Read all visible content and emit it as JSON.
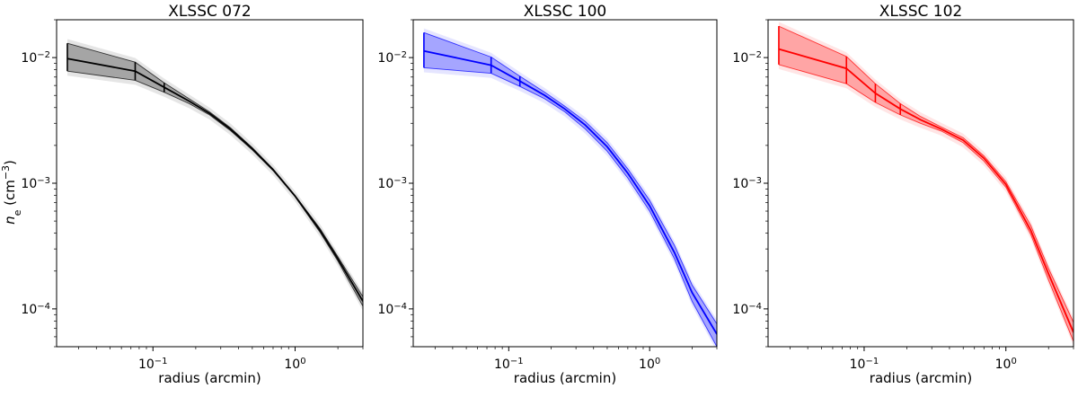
{
  "figure": {
    "ylabel_main": "n",
    "ylabel_sub": "e",
    "ylabel_unit_pre": " (cm",
    "ylabel_unit_exp": "−3",
    "ylabel_unit_post": ")"
  },
  "chart_data": [
    {
      "type": "line",
      "title": "XLSSC 072",
      "xlabel": "radius (arcmin)",
      "ylabel": "n_e (cm^-3)",
      "xscale": "log",
      "yscale": "log",
      "xlim": [
        0.021,
        3.0
      ],
      "ylim": [
        5e-05,
        0.02
      ],
      "color": "#000000",
      "x_ticks": [
        {
          "base": "10",
          "exp": "−1",
          "value": 0.1
        },
        {
          "base": "10",
          "exp": "0",
          "value": 1
        }
      ],
      "y_ticks": [
        {
          "base": "10",
          "exp": "−2",
          "value": 0.01
        },
        {
          "base": "10",
          "exp": "−3",
          "value": 0.001
        },
        {
          "base": "10",
          "exp": "−4",
          "value": 0.0001
        }
      ],
      "curve": {
        "x": [
          0.025,
          0.075,
          0.12,
          0.18,
          0.25,
          0.35,
          0.5,
          0.7,
          1.0,
          1.5,
          2.0,
          3.0
        ],
        "y": [
          0.0098,
          0.0078,
          0.0058,
          0.0045,
          0.0036,
          0.0027,
          0.00188,
          0.00128,
          0.00079,
          0.00042,
          0.00025,
          0.000115
        ]
      },
      "upper": [
        0.013,
        0.0092,
        0.0063,
        0.0047,
        0.0037,
        0.00277,
        0.00192,
        0.0013,
        0.0008,
        0.000435,
        0.00026,
        0.000125
      ],
      "lower": [
        0.0078,
        0.0066,
        0.0053,
        0.0043,
        0.0035,
        0.00263,
        0.00184,
        0.00126,
        0.00078,
        0.000405,
        0.00024,
        0.000105
      ],
      "errbars": [
        {
          "x": 0.025,
          "y": 0.0098,
          "lo": 0.0078,
          "hi": 0.013
        },
        {
          "x": 0.075,
          "y": 0.0078,
          "lo": 0.0066,
          "hi": 0.0092
        },
        {
          "x": 0.12,
          "y": 0.0058,
          "lo": 0.0053,
          "hi": 0.0063
        }
      ]
    },
    {
      "type": "line",
      "title": "XLSSC 100",
      "xlabel": "radius (arcmin)",
      "ylabel": "",
      "xscale": "log",
      "yscale": "log",
      "xlim": [
        0.021,
        3.0
      ],
      "ylim": [
        5e-05,
        0.02
      ],
      "color": "#0000ff",
      "x_ticks": [
        {
          "base": "10",
          "exp": "−1",
          "value": 0.1
        },
        {
          "base": "10",
          "exp": "0",
          "value": 1
        }
      ],
      "y_ticks": [
        {
          "base": "10",
          "exp": "−2",
          "value": 0.01
        },
        {
          "base": "10",
          "exp": "−3",
          "value": 0.001
        },
        {
          "base": "10",
          "exp": "−4",
          "value": 0.0001
        }
      ],
      "curve": {
        "x": [
          0.025,
          0.075,
          0.12,
          0.18,
          0.25,
          0.35,
          0.5,
          0.7,
          1.0,
          1.5,
          2.0,
          3.0
        ],
        "y": [
          0.0113,
          0.0087,
          0.0065,
          0.005,
          0.0039,
          0.0029,
          0.00195,
          0.0012,
          0.00066,
          0.00028,
          0.000135,
          6.3e-05
        ]
      },
      "upper": [
        0.0158,
        0.0101,
        0.0071,
        0.0053,
        0.0041,
        0.0031,
        0.0021,
        0.0013,
        0.00073,
        0.00032,
        0.000155,
        7.6e-05
      ],
      "lower": [
        0.0083,
        0.0075,
        0.0059,
        0.0047,
        0.0037,
        0.0027,
        0.0018,
        0.0011,
        0.0006,
        0.00025,
        0.000115,
        5e-05
      ],
      "errbars": [
        {
          "x": 0.025,
          "y": 0.0113,
          "lo": 0.0083,
          "hi": 0.0158
        },
        {
          "x": 0.075,
          "y": 0.0087,
          "lo": 0.0075,
          "hi": 0.0101
        },
        {
          "x": 0.12,
          "y": 0.0065,
          "lo": 0.0059,
          "hi": 0.0071
        }
      ]
    },
    {
      "type": "line",
      "title": "XLSSC 102",
      "xlabel": "radius (arcmin)",
      "ylabel": "",
      "xscale": "log",
      "yscale": "log",
      "xlim": [
        0.021,
        3.0
      ],
      "ylim": [
        5e-05,
        0.02
      ],
      "color": "#ff0000",
      "x_ticks": [
        {
          "base": "10",
          "exp": "−1",
          "value": 0.1
        },
        {
          "base": "10",
          "exp": "0",
          "value": 1
        }
      ],
      "y_ticks": [
        {
          "base": "10",
          "exp": "−2",
          "value": 0.01
        },
        {
          "base": "10",
          "exp": "−3",
          "value": 0.001
        },
        {
          "base": "10",
          "exp": "−4",
          "value": 0.0001
        }
      ],
      "curve": {
        "x": [
          0.025,
          0.075,
          0.12,
          0.18,
          0.25,
          0.35,
          0.5,
          0.7,
          1.0,
          1.5,
          2.0,
          3.0
        ],
        "y": [
          0.0117,
          0.0082,
          0.0052,
          0.0039,
          0.0032,
          0.0027,
          0.0022,
          0.00158,
          0.00098,
          0.00042,
          0.00019,
          6.5e-05
        ]
      },
      "upper": [
        0.0178,
        0.0102,
        0.0062,
        0.0043,
        0.0034,
        0.0028,
        0.0023,
        0.00165,
        0.00103,
        0.00046,
        0.00021,
        7.8e-05
      ],
      "lower": [
        0.0088,
        0.0062,
        0.0044,
        0.0035,
        0.003,
        0.0026,
        0.0021,
        0.0015,
        0.00093,
        0.00039,
        0.00017,
        5.5e-05
      ],
      "errbars": [
        {
          "x": 0.025,
          "y": 0.0117,
          "lo": 0.0088,
          "hi": 0.0178
        },
        {
          "x": 0.075,
          "y": 0.0082,
          "lo": 0.0062,
          "hi": 0.0102
        },
        {
          "x": 0.12,
          "y": 0.0052,
          "lo": 0.0044,
          "hi": 0.0062
        },
        {
          "x": 0.18,
          "y": 0.0039,
          "lo": 0.0035,
          "hi": 0.0043
        }
      ]
    }
  ]
}
